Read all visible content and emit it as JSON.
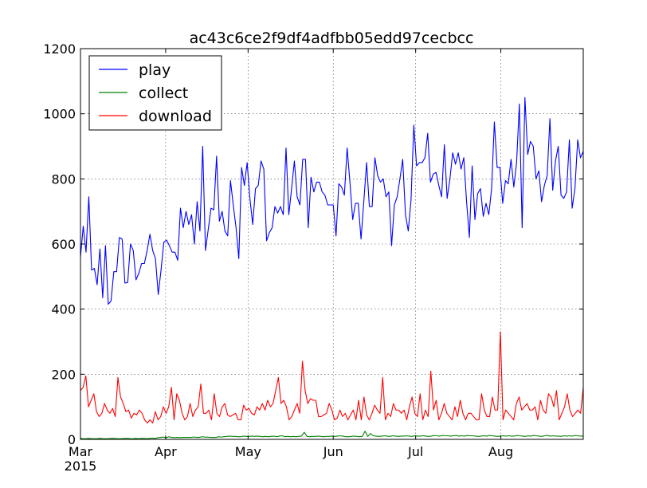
{
  "chart_data": {
    "type": "line",
    "title": "ac43c6ce2f9df4adfbb05edd97cecbcc",
    "xlabel": "",
    "ylabel": "",
    "x_start": "2015-03-01",
    "x_end": "2015-08-31",
    "ylim": [
      0,
      1200
    ],
    "yticks": [
      0,
      200,
      400,
      600,
      800,
      1000,
      1200
    ],
    "yticks_labels": [
      "0",
      "200",
      "400",
      "600",
      "800",
      "1000",
      "1200"
    ],
    "xticks": [
      {
        "date": "2015-03-01",
        "label": "Mar",
        "sublabel": "2015"
      },
      {
        "date": "2015-04-01",
        "label": "Apr",
        "sublabel": ""
      },
      {
        "date": "2015-05-01",
        "label": "May",
        "sublabel": ""
      },
      {
        "date": "2015-06-01",
        "label": "Jun",
        "sublabel": ""
      },
      {
        "date": "2015-07-01",
        "label": "Jul",
        "sublabel": ""
      },
      {
        "date": "2015-08-01",
        "label": "Aug",
        "sublabel": ""
      }
    ],
    "grid": true,
    "legend_position": "top-left",
    "series": [
      {
        "name": "play",
        "color": "#0000ff",
        "values": [
          560,
          655,
          575,
          745,
          520,
          525,
          475,
          585,
          435,
          595,
          415,
          425,
          515,
          515,
          620,
          615,
          480,
          482,
          600,
          580,
          490,
          510,
          540,
          540,
          580,
          630,
          580,
          555,
          445,
          520,
          605,
          612,
          595,
          575,
          575,
          550,
          710,
          650,
          700,
          660,
          690,
          600,
          730,
          640,
          900,
          580,
          645,
          710,
          705,
          870,
          670,
          700,
          640,
          625,
          795,
          720,
          650,
          555,
          835,
          780,
          850,
          740,
          660,
          770,
          780,
          855,
          830,
          610,
          635,
          650,
          715,
          695,
          715,
          690,
          895,
          690,
          770,
          855,
          745,
          720,
          860,
          860,
          650,
          805,
          760,
          790,
          790,
          760,
          750,
          720,
          720,
          720,
          625,
          785,
          775,
          750,
          895,
          790,
          675,
          725,
          725,
          615,
          730,
          850,
          715,
          715,
          865,
          810,
          790,
          800,
          745,
          760,
          595,
          720,
          745,
          800,
          860,
          690,
          640,
          735,
          965,
          840,
          850,
          850,
          865,
          940,
          790,
          815,
          820,
          780,
          745,
          905,
          740,
          800,
          880,
          845,
          880,
          830,
          865,
          730,
          620,
          840,
          675,
          755,
          770,
          685,
          725,
          690,
          770,
          975,
          835,
          835,
          725,
          795,
          785,
          860,
          775,
          850,
          1030,
          650,
          1050,
          875,
          915,
          900,
          800,
          825,
          730,
          780,
          810,
          985,
          765,
          855,
          900,
          750,
          740,
          760,
          920,
          710,
          770,
          920,
          865,
          885
        ],
        "min_date_step": 1
      },
      {
        "name": "collect",
        "color": "#008000",
        "values": [
          3,
          2,
          2,
          3,
          2,
          2,
          2,
          3,
          2,
          2,
          2,
          3,
          3,
          2,
          2,
          2,
          3,
          3,
          2,
          2,
          3,
          2,
          3,
          3,
          2,
          3,
          4,
          3,
          5,
          6,
          7,
          5,
          8,
          6,
          5,
          6,
          5,
          6,
          6,
          6,
          6,
          7,
          6,
          6,
          8,
          7,
          7,
          6,
          6,
          6,
          8,
          7,
          8,
          9,
          10,
          9,
          9,
          8,
          8,
          10,
          9,
          9,
          10,
          9,
          10,
          9,
          8,
          9,
          8,
          9,
          10,
          8,
          10,
          11,
          8,
          9,
          8,
          9,
          8,
          9,
          10,
          9,
          9,
          8,
          9,
          9,
          10,
          9,
          8,
          9,
          9,
          10,
          9,
          10,
          11,
          10,
          8,
          8,
          9,
          10,
          9,
          8,
          9,
          10,
          9,
          10,
          11,
          10,
          9,
          10,
          11,
          10,
          9,
          11,
          10,
          9,
          10,
          10,
          11,
          10,
          9,
          11,
          10,
          10,
          11,
          10,
          9,
          10,
          12,
          11,
          10,
          12,
          11,
          11,
          10,
          11,
          12,
          10,
          11,
          10,
          12,
          11,
          11,
          10,
          9,
          10,
          11,
          10,
          12,
          11,
          10,
          9,
          10,
          11,
          10,
          11,
          10,
          10,
          12,
          11,
          10,
          9,
          11,
          10,
          12,
          11,
          10,
          9,
          11,
          12,
          10,
          11,
          10,
          10,
          9,
          11,
          10,
          11,
          10,
          12,
          11,
          10,
          10
        ],
        "spikes": [
          {
            "date": "2015-05-21",
            "value": 22
          },
          {
            "date": "2015-06-13",
            "value": 25
          },
          {
            "date": "2015-06-15",
            "value": 18
          }
        ]
      },
      {
        "name": "download",
        "color": "#ff0000",
        "values": [
          150,
          160,
          195,
          100,
          120,
          140,
          85,
          70,
          80,
          110,
          90,
          80,
          95,
          70,
          190,
          130,
          110,
          85,
          90,
          65,
          80,
          75,
          90,
          80,
          60,
          50,
          60,
          50,
          85,
          60,
          70,
          100,
          80,
          100,
          160,
          60,
          140,
          120,
          80,
          60,
          70,
          110,
          70,
          90,
          100,
          170,
          80,
          80,
          90,
          60,
          140,
          80,
          70,
          100,
          110,
          75,
          70,
          75,
          80,
          60,
          60,
          105,
          90,
          95,
          80,
          75,
          100,
          90,
          110,
          90,
          120,
          100,
          110,
          150,
          190,
          110,
          120,
          100,
          60,
          70,
          90,
          110,
          80,
          240,
          150,
          110,
          125,
          120,
          120,
          70,
          70,
          75,
          80,
          110,
          90,
          60,
          65,
          90,
          70,
          80,
          60,
          75,
          90,
          60,
          120,
          60,
          130,
          75,
          60,
          80,
          105,
          90,
          80,
          190,
          60,
          80,
          70,
          110,
          90,
          90,
          80,
          90,
          60,
          100,
          130,
          80,
          70,
          140,
          60,
          90,
          70,
          210,
          90,
          120,
          60,
          80,
          110,
          80,
          70,
          60,
          100,
          70,
          120,
          80,
          60,
          80,
          80,
          70,
          60,
          60,
          140,
          90,
          70,
          70,
          130,
          90,
          90,
          330,
          60,
          90,
          80,
          70,
          60,
          110,
          130,
          90,
          100,
          110,
          90,
          90,
          100,
          60,
          120,
          90,
          80,
          140,
          130,
          100,
          150,
          60,
          80,
          100,
          140,
          90,
          70,
          80,
          90,
          80,
          160
        ]
      }
    ]
  }
}
